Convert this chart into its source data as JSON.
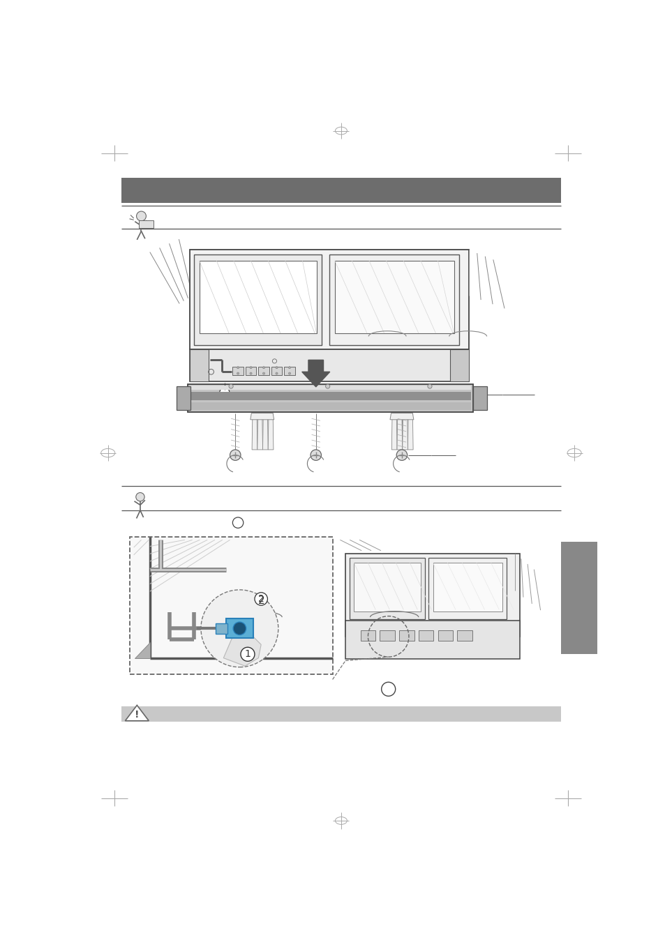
{
  "page_width": 9.54,
  "page_height": 13.51,
  "dpi": 100,
  "bg_color": "#ffffff",
  "header_bar_color": "#6d6d6d",
  "gray_tab_color": "#888888",
  "warning_bar_color": "#c8c8c8"
}
